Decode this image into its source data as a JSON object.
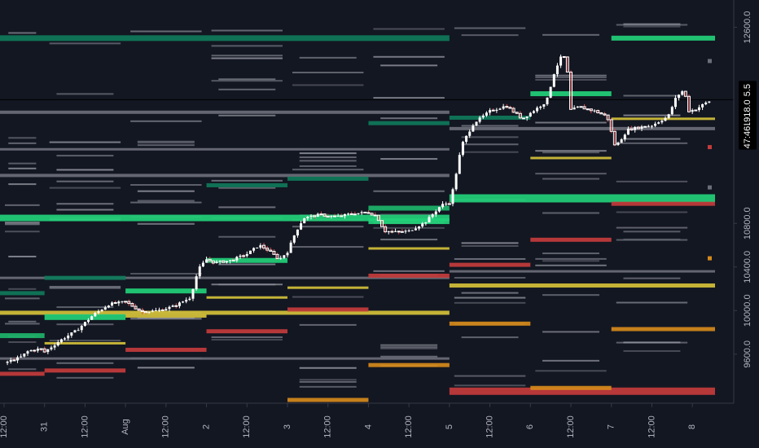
{
  "colors": {
    "background": "#131722",
    "axis_line": "#363a45",
    "axis_text": "#b2b5be",
    "crosshair": "#000000",
    "candle_up": "#ffffff",
    "candle_down": "#ffffff",
    "wick_down": "#e04a4a",
    "level_strong_green": "#22d17a",
    "level_green": "#1db46a",
    "level_teal": "#0f7a5a",
    "level_gray": "#6b6e78",
    "level_light": "#8d9099",
    "level_yellow": "#d4c13a",
    "level_orange": "#d58a1b",
    "level_red": "#c43c3c",
    "tag_bg": "#000000"
  },
  "chart_data": {
    "type": "candlestick",
    "title": "",
    "xlabel": "",
    "ylabel": "",
    "ylim": [
      9150,
      12850
    ],
    "grid": false,
    "y_ticks": [
      {
        "label": "12600.0",
        "value": 12600
      },
      {
        "label": "10800.0",
        "value": 10800
      },
      {
        "label": "10400.0",
        "value": 10400
      },
      {
        "label": "10000.0",
        "value": 10000
      },
      {
        "label": "9600.0",
        "value": 9600
      }
    ],
    "price_tags": [
      {
        "label": "11935.5",
        "value": 11935
      },
      {
        "label": "11918.0",
        "value": 11790
      },
      {
        "label": "47:46",
        "value": 11590
      }
    ],
    "crosshair_price": 11935,
    "x_ticks": [
      {
        "label": "12:00",
        "day": 0.0
      },
      {
        "label": "31",
        "day": 0.5
      },
      {
        "label": "12:00",
        "day": 1.0
      },
      {
        "label": "Aug",
        "day": 1.5
      },
      {
        "label": "12:00",
        "day": 2.0
      },
      {
        "label": "2",
        "day": 2.5
      },
      {
        "label": "12:00",
        "day": 3.0
      },
      {
        "label": "3",
        "day": 3.5
      },
      {
        "label": "12:00",
        "day": 4.0
      },
      {
        "label": "4",
        "day": 4.5
      },
      {
        "label": "12:00",
        "day": 5.0
      },
      {
        "label": "5",
        "day": 5.5
      },
      {
        "label": "12:00",
        "day": 6.0
      },
      {
        "label": "6",
        "day": 6.5
      },
      {
        "label": "12:00",
        "day": 7.0
      },
      {
        "label": "7",
        "day": 7.5
      },
      {
        "label": "12:00",
        "day": 8.0
      },
      {
        "label": "8",
        "day": 8.5
      }
    ],
    "x_range": [
      -0.05,
      8.78
    ],
    "price_path": [
      [
        0.0,
        9520
      ],
      [
        0.2,
        9570
      ],
      [
        0.3,
        9630
      ],
      [
        0.45,
        9650
      ],
      [
        0.5,
        9620
      ],
      [
        0.7,
        9730
      ],
      [
        0.9,
        9820
      ],
      [
        1.1,
        9960
      ],
      [
        1.3,
        10060
      ],
      [
        1.5,
        10080
      ],
      [
        1.7,
        9990
      ],
      [
        1.9,
        10000
      ],
      [
        2.1,
        10040
      ],
      [
        2.3,
        10120
      ],
      [
        2.4,
        10380
      ],
      [
        2.5,
        10470
      ],
      [
        2.6,
        10440
      ],
      [
        2.8,
        10460
      ],
      [
        3.0,
        10520
      ],
      [
        3.15,
        10600
      ],
      [
        3.25,
        10560
      ],
      [
        3.4,
        10470
      ],
      [
        3.5,
        10540
      ],
      [
        3.6,
        10720
      ],
      [
        3.7,
        10850
      ],
      [
        3.9,
        10880
      ],
      [
        4.1,
        10860
      ],
      [
        4.3,
        10890
      ],
      [
        4.5,
        10900
      ],
      [
        4.6,
        10870
      ],
      [
        4.7,
        10730
      ],
      [
        4.85,
        10720
      ],
      [
        5.0,
        10730
      ],
      [
        5.2,
        10810
      ],
      [
        5.4,
        10970
      ],
      [
        5.5,
        10990
      ],
      [
        5.55,
        11130
      ],
      [
        5.65,
        11520
      ],
      [
        5.8,
        11720
      ],
      [
        6.0,
        11830
      ],
      [
        6.2,
        11880
      ],
      [
        6.4,
        11760
      ],
      [
        6.55,
        11840
      ],
      [
        6.7,
        11920
      ],
      [
        6.8,
        12200
      ],
      [
        6.9,
        12360
      ],
      [
        6.95,
        12250
      ],
      [
        7.0,
        11840
      ],
      [
        7.1,
        11870
      ],
      [
        7.3,
        11830
      ],
      [
        7.45,
        11780
      ],
      [
        7.55,
        11500
      ],
      [
        7.7,
        11660
      ],
      [
        7.9,
        11690
      ],
      [
        8.0,
        11700
      ],
      [
        8.2,
        11780
      ],
      [
        8.3,
        11960
      ],
      [
        8.4,
        12030
      ],
      [
        8.45,
        11830
      ],
      [
        8.55,
        11850
      ],
      [
        8.65,
        11900
      ],
      [
        8.75,
        11935
      ]
    ],
    "level_bands": [
      {
        "x0": -0.05,
        "x1": 5.5,
        "price": 12500,
        "color": "level_teal",
        "h": 7
      },
      {
        "x0": -0.05,
        "x1": 5.5,
        "price": 11820,
        "color": "level_gray",
        "h": 4
      },
      {
        "x0": -0.05,
        "x1": 5.5,
        "price": 11480,
        "color": "level_gray",
        "h": 3
      },
      {
        "x0": -0.05,
        "x1": 5.5,
        "price": 11240,
        "color": "level_gray",
        "h": 4
      },
      {
        "x0": -0.05,
        "x1": 5.5,
        "price": 10850,
        "color": "level_strong_green",
        "h": 8
      },
      {
        "x0": -0.05,
        "x1": 5.5,
        "price": 10300,
        "color": "level_gray",
        "h": 3
      },
      {
        "x0": -0.05,
        "x1": 5.5,
        "price": 9980,
        "color": "level_yellow",
        "h": 5
      },
      {
        "x0": -0.05,
        "x1": 5.5,
        "price": 9560,
        "color": "level_gray",
        "h": 3
      },
      {
        "x0": -0.05,
        "x1": 0.5,
        "price": 10160,
        "color": "level_teal",
        "h": 5
      },
      {
        "x0": -0.05,
        "x1": 0.5,
        "price": 9770,
        "color": "level_green",
        "h": 6
      },
      {
        "x0": -0.05,
        "x1": 0.5,
        "price": 9420,
        "color": "level_red",
        "h": 5
      },
      {
        "x0": 0.5,
        "x1": 1.5,
        "price": 10300,
        "color": "level_teal",
        "h": 5
      },
      {
        "x0": 0.5,
        "x1": 1.5,
        "price": 9940,
        "color": "level_strong_green",
        "h": 7
      },
      {
        "x0": 0.5,
        "x1": 1.5,
        "price": 9700,
        "color": "level_yellow",
        "h": 3
      },
      {
        "x0": 0.5,
        "x1": 1.5,
        "price": 9450,
        "color": "level_red",
        "h": 5
      },
      {
        "x0": 1.5,
        "x1": 2.5,
        "price": 10180,
        "color": "level_strong_green",
        "h": 6
      },
      {
        "x0": 1.5,
        "x1": 2.5,
        "price": 9640,
        "color": "level_red",
        "h": 5
      },
      {
        "x0": 1.5,
        "x1": 2.5,
        "price": 9950,
        "color": "level_yellow",
        "h": 4
      },
      {
        "x0": 2.5,
        "x1": 3.5,
        "price": 11150,
        "color": "level_teal",
        "h": 5
      },
      {
        "x0": 2.5,
        "x1": 3.5,
        "price": 10460,
        "color": "level_strong_green",
        "h": 6
      },
      {
        "x0": 2.5,
        "x1": 3.5,
        "price": 10120,
        "color": "level_yellow",
        "h": 3
      },
      {
        "x0": 2.5,
        "x1": 3.5,
        "price": 9810,
        "color": "level_red",
        "h": 5
      },
      {
        "x0": 3.5,
        "x1": 4.5,
        "price": 11210,
        "color": "level_teal",
        "h": 5
      },
      {
        "x0": 3.5,
        "x1": 4.5,
        "price": 10210,
        "color": "level_yellow",
        "h": 3
      },
      {
        "x0": 3.5,
        "x1": 4.5,
        "price": 10010,
        "color": "level_red",
        "h": 5
      },
      {
        "x0": 3.5,
        "x1": 4.5,
        "price": 9180,
        "color": "level_orange",
        "h": 5
      },
      {
        "x0": 4.5,
        "x1": 5.5,
        "price": 11720,
        "color": "level_teal",
        "h": 5
      },
      {
        "x0": 4.5,
        "x1": 5.5,
        "price": 10940,
        "color": "level_green",
        "h": 6
      },
      {
        "x0": 4.5,
        "x1": 5.5,
        "price": 10820,
        "color": "level_strong_green",
        "h": 7
      },
      {
        "x0": 4.5,
        "x1": 5.5,
        "price": 10570,
        "color": "level_yellow",
        "h": 3
      },
      {
        "x0": 4.5,
        "x1": 5.5,
        "price": 10320,
        "color": "level_red",
        "h": 5
      },
      {
        "x0": 4.5,
        "x1": 5.5,
        "price": 9500,
        "color": "level_orange",
        "h": 5
      },
      {
        "x0": 5.5,
        "x1": 8.78,
        "price": 11030,
        "color": "level_strong_green",
        "h": 10
      },
      {
        "x0": 5.5,
        "x1": 8.78,
        "price": 10230,
        "color": "level_yellow",
        "h": 5
      },
      {
        "x0": 5.5,
        "x1": 8.78,
        "price": 10360,
        "color": "level_gray",
        "h": 3
      },
      {
        "x0": 5.5,
        "x1": 8.78,
        "price": 9260,
        "color": "level_red",
        "h": 9
      },
      {
        "x0": 5.5,
        "x1": 8.78,
        "price": 11670,
        "color": "level_gray",
        "h": 4
      },
      {
        "x0": 5.5,
        "x1": 6.5,
        "price": 11770,
        "color": "level_teal",
        "h": 5
      },
      {
        "x0": 5.5,
        "x1": 6.5,
        "price": 10420,
        "color": "level_red",
        "h": 5
      },
      {
        "x0": 5.5,
        "x1": 6.5,
        "price": 9880,
        "color": "level_orange",
        "h": 5
      },
      {
        "x0": 6.5,
        "x1": 7.5,
        "price": 11990,
        "color": "level_strong_green",
        "h": 6
      },
      {
        "x0": 6.5,
        "x1": 7.5,
        "price": 11400,
        "color": "level_yellow",
        "h": 3
      },
      {
        "x0": 6.5,
        "x1": 7.5,
        "price": 10650,
        "color": "level_red",
        "h": 5
      },
      {
        "x0": 6.5,
        "x1": 7.5,
        "price": 9290,
        "color": "level_orange",
        "h": 5
      },
      {
        "x0": 7.5,
        "x1": 8.78,
        "price": 12500,
        "color": "level_strong_green",
        "h": 6
      },
      {
        "x0": 7.5,
        "x1": 8.78,
        "price": 11760,
        "color": "level_yellow",
        "h": 3
      },
      {
        "x0": 7.5,
        "x1": 8.78,
        "price": 10980,
        "color": "level_red",
        "h": 5
      },
      {
        "x0": 7.5,
        "x1": 8.78,
        "price": 9830,
        "color": "level_orange",
        "h": 5
      }
    ],
    "minor_levels_per_day": 18,
    "right_markers": [
      {
        "price": 11500,
        "color": "level_red"
      },
      {
        "price": 10480,
        "color": "level_orange"
      },
      {
        "price": 12290,
        "color": "level_gray"
      },
      {
        "price": 11130,
        "color": "level_gray"
      }
    ]
  }
}
